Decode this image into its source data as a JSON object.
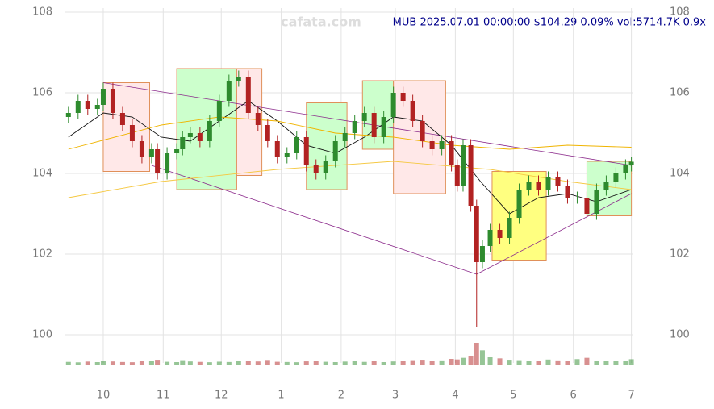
{
  "chart_data": {
    "type": "candlestick",
    "title": "MUB 2025.07.01 00:00:00 $104.29 0.09% vol:5714.7K 0.9x",
    "watermark": "cafata.com",
    "xlim": [
      -20,
      274
    ],
    "ylim": [
      99.3,
      108.3
    ],
    "xticks": [
      {
        "value": 0,
        "label": "10"
      },
      {
        "value": 31,
        "label": "11"
      },
      {
        "value": 61,
        "label": "12"
      },
      {
        "value": 92,
        "label": "1"
      },
      {
        "value": 123,
        "label": "2"
      },
      {
        "value": 151,
        "label": "3"
      },
      {
        "value": 182,
        "label": "4"
      },
      {
        "value": 212,
        "label": "5"
      },
      {
        "value": 243,
        "label": "6"
      },
      {
        "value": 273,
        "label": "7"
      }
    ],
    "yticks": [
      100,
      102,
      104,
      106,
      108
    ],
    "grid": true,
    "up_color": "#2e8b2e",
    "down_color": "#b22222",
    "x": [
      -18,
      -13,
      -8,
      -3,
      0,
      5,
      10,
      15,
      20,
      25,
      28,
      33,
      38,
      41,
      45,
      50,
      55,
      60,
      65,
      70,
      75,
      80,
      85,
      90,
      95,
      100,
      105,
      110,
      115,
      120,
      125,
      130,
      135,
      140,
      145,
      150,
      155,
      160,
      165,
      170,
      175,
      180,
      183,
      186,
      190,
      193,
      196,
      200,
      205,
      210,
      215,
      220,
      225,
      230,
      235,
      240,
      245,
      250,
      255,
      260,
      265,
      270,
      273
    ],
    "open": [
      105.4,
      105.5,
      105.8,
      105.6,
      105.7,
      106.1,
      105.5,
      105.2,
      104.8,
      104.4,
      104.6,
      104.0,
      104.5,
      104.6,
      104.9,
      105.0,
      104.8,
      105.3,
      105.8,
      106.3,
      106.4,
      105.5,
      105.2,
      104.8,
      104.4,
      104.5,
      104.9,
      104.2,
      104.0,
      104.3,
      104.8,
      105.0,
      105.3,
      105.5,
      104.9,
      105.4,
      106.0,
      105.8,
      105.3,
      104.8,
      104.6,
      104.8,
      104.2,
      103.7,
      104.7,
      103.2,
      101.8,
      102.2,
      102.6,
      102.4,
      102.9,
      103.6,
      103.8,
      103.6,
      103.9,
      103.7,
      103.4,
      103.4,
      103.0,
      103.6,
      103.8,
      104.0,
      104.2
    ],
    "high": [
      105.65,
      105.95,
      105.95,
      105.85,
      106.25,
      106.25,
      105.65,
      105.35,
      104.95,
      104.75,
      104.75,
      104.65,
      104.75,
      105.05,
      105.15,
      105.15,
      105.45,
      105.95,
      106.45,
      106.55,
      106.55,
      105.65,
      105.35,
      104.95,
      104.65,
      105.05,
      105.05,
      104.35,
      104.45,
      104.95,
      105.15,
      105.45,
      105.65,
      105.65,
      105.55,
      106.15,
      106.15,
      105.95,
      105.45,
      104.95,
      104.95,
      104.95,
      104.35,
      104.85,
      104.85,
      103.35,
      102.35,
      102.75,
      102.75,
      103.05,
      103.75,
      103.95,
      103.95,
      104.05,
      104.05,
      103.85,
      103.55,
      103.55,
      103.75,
      103.95,
      104.15,
      104.35,
      104.4
    ],
    "low": [
      105.25,
      105.35,
      105.45,
      105.45,
      105.55,
      105.35,
      105.05,
      104.65,
      104.25,
      104.25,
      103.85,
      103.85,
      104.35,
      104.45,
      104.75,
      104.65,
      104.65,
      105.15,
      105.65,
      106.15,
      105.35,
      105.05,
      104.65,
      104.25,
      104.25,
      104.35,
      104.05,
      103.85,
      103.85,
      104.15,
      104.65,
      104.85,
      105.15,
      104.75,
      104.75,
      105.25,
      105.65,
      105.15,
      104.65,
      104.45,
      104.45,
      104.05,
      103.55,
      103.55,
      103.05,
      100.2,
      101.65,
      102.05,
      102.25,
      102.25,
      102.75,
      103.45,
      103.45,
      103.45,
      103.55,
      103.25,
      103.25,
      102.85,
      102.85,
      103.45,
      103.65,
      103.85,
      104.05
    ],
    "close": [
      105.5,
      105.8,
      105.6,
      105.7,
      106.1,
      105.5,
      105.2,
      104.8,
      104.4,
      104.6,
      104.0,
      104.5,
      104.6,
      104.9,
      105.0,
      104.8,
      105.3,
      105.8,
      106.3,
      106.4,
      105.5,
      105.2,
      104.8,
      104.4,
      104.5,
      104.9,
      104.2,
      104.0,
      104.3,
      104.8,
      105.0,
      105.3,
      105.5,
      104.9,
      105.4,
      106.0,
      105.8,
      105.3,
      104.8,
      104.6,
      104.8,
      104.2,
      103.7,
      104.7,
      103.2,
      101.8,
      102.2,
      102.6,
      102.4,
      102.9,
      103.6,
      103.8,
      103.6,
      103.9,
      103.7,
      103.4,
      103.4,
      103.0,
      103.6,
      103.8,
      104.0,
      104.2,
      104.29
    ],
    "volume": [
      3200,
      2800,
      3500,
      3000,
      4200,
      3600,
      3100,
      2900,
      3800,
      4500,
      5200,
      3300,
      3000,
      4800,
      3600,
      3200,
      2900,
      3400,
      3100,
      3800,
      4200,
      3600,
      5000,
      3300,
      3100,
      2900,
      3700,
      4100,
      3300,
      3000,
      3500,
      3800,
      3200,
      4400,
      3000,
      3600,
      3900,
      4800,
      5200,
      4000,
      4600,
      6000,
      5500,
      7000,
      9000,
      21000,
      14000,
      8000,
      6500,
      5200,
      4800,
      4200,
      3800,
      5400,
      4600,
      3900,
      5800,
      7000,
      4300,
      3800,
      4100,
      4500,
      5700
    ],
    "boxes": [
      {
        "x": [
          0,
          24
        ],
        "y": [
          104.05,
          106.25
        ],
        "color": "#ffe8e8"
      },
      {
        "x": [
          38,
          69
        ],
        "y": [
          103.6,
          106.6
        ],
        "color": "#ccffcc"
      },
      {
        "x": [
          69,
          82
        ],
        "y": [
          103.95,
          106.6
        ],
        "color": "#ffe8e8"
      },
      {
        "x": [
          105,
          126
        ],
        "y": [
          103.6,
          105.75
        ],
        "color": "#ccffcc"
      },
      {
        "x": [
          134,
          150
        ],
        "y": [
          104.6,
          106.3
        ],
        "color": "#ccffcc"
      },
      {
        "x": [
          150,
          177
        ],
        "y": [
          103.5,
          106.3
        ],
        "color": "#ffe8e8"
      },
      {
        "x": [
          201,
          229
        ],
        "y": [
          101.85,
          104.05
        ],
        "color": "#ffff80"
      },
      {
        "x": [
          250,
          273
        ],
        "y": [
          102.95,
          104.3
        ],
        "color": "#ccffcc"
      }
    ],
    "ma": [
      {
        "color": "#111111",
        "x": [
          -18,
          0,
          15,
          30,
          45,
          60,
          75,
          90,
          105,
          120,
          135,
          150,
          165,
          180,
          195,
          210,
          225,
          240,
          255,
          273
        ],
        "values": [
          104.9,
          105.5,
          105.4,
          104.9,
          104.8,
          105.3,
          105.8,
          105.3,
          104.7,
          104.5,
          104.9,
          105.4,
          105.3,
          104.7,
          103.8,
          103.0,
          103.4,
          103.5,
          103.3,
          103.6
        ]
      },
      {
        "color": "#f0b400",
        "x": [
          -18,
          30,
          60,
          90,
          120,
          150,
          180,
          210,
          240,
          273
        ],
        "values": [
          104.6,
          105.2,
          105.4,
          105.3,
          105.0,
          104.9,
          104.7,
          104.6,
          104.7,
          104.65
        ]
      },
      {
        "color": "#f5c842",
        "x": [
          -18,
          30,
          90,
          150,
          200,
          240,
          273
        ],
        "values": [
          103.4,
          103.8,
          104.1,
          104.3,
          104.1,
          103.8,
          103.6
        ]
      }
    ],
    "trendlines": [
      {
        "x": [
          0,
          273
        ],
        "y": [
          106.25,
          104.2
        ],
        "color": "#8b2a8b"
      },
      {
        "x": [
          25,
          193
        ],
        "y": [
          104.2,
          101.5
        ],
        "color": "#8b2a8b"
      },
      {
        "x": [
          193,
          273
        ],
        "y": [
          101.5,
          103.5
        ],
        "color": "#8b2a8b"
      }
    ]
  }
}
